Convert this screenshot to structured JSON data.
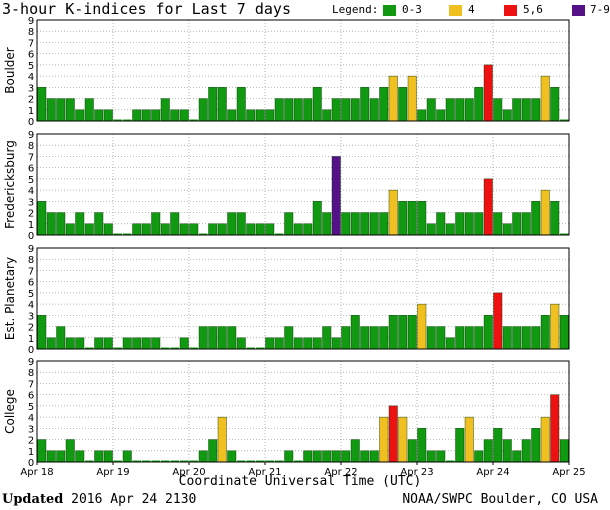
{
  "title": "3-hour K-indices for Last 7 days",
  "legend": {
    "label": "Legend:",
    "items": [
      {
        "label": "0-3",
        "color": "#119911"
      },
      {
        "label": "4",
        "color": "#f0c020"
      },
      {
        "label": "5,6",
        "color": "#ee1111"
      },
      {
        "label": "7-9",
        "color": "#551188"
      }
    ]
  },
  "footer": {
    "updated_label": "Updated",
    "updated_value": "2016 Apr 24 2130",
    "credit": "NOAA/SWPC Boulder, CO USA"
  },
  "chart_data": {
    "type": "bar",
    "title": "3-hour K-indices for Last 7 days",
    "xlabel": "Coordinate Universal Time (UTC)",
    "x_ticks": [
      "Apr 18",
      "Apr 19",
      "Apr 20",
      "Apr 21",
      "Apr 22",
      "Apr 23",
      "Apr 24",
      "Apr 25"
    ],
    "ylim": [
      0,
      9
    ],
    "y_ticks": [
      0,
      1,
      2,
      3,
      4,
      5,
      6,
      7,
      8,
      9
    ],
    "grid": true,
    "bins_per_day": 8,
    "panels": [
      {
        "name": "Boulder",
        "values": [
          3,
          2,
          2,
          2,
          1,
          2,
          1,
          1,
          0,
          0,
          1,
          1,
          1,
          2,
          1,
          1,
          0,
          2,
          3,
          3,
          1,
          3,
          1,
          1,
          1,
          2,
          2,
          2,
          2,
          3,
          1,
          2,
          2,
          2,
          3,
          2,
          3,
          4,
          3,
          4,
          1,
          2,
          1,
          2,
          2,
          2,
          3,
          5,
          2,
          1,
          2,
          2,
          2,
          4,
          3,
          0
        ]
      },
      {
        "name": "Fredericksburg",
        "values": [
          3,
          2,
          2,
          1,
          2,
          1,
          2,
          1,
          0,
          0,
          1,
          1,
          2,
          1,
          2,
          1,
          1,
          0,
          1,
          1,
          2,
          2,
          1,
          1,
          1,
          0,
          2,
          1,
          1,
          3,
          2,
          7,
          2,
          2,
          2,
          2,
          2,
          4,
          3,
          3,
          3,
          1,
          2,
          1,
          2,
          2,
          2,
          5,
          2,
          1,
          2,
          2,
          3,
          4,
          3,
          0
        ]
      },
      {
        "name": "Est. Planetary",
        "values": [
          3,
          1,
          2,
          1,
          1,
          0,
          1,
          1,
          0,
          1,
          1,
          1,
          1,
          0,
          0,
          1,
          0,
          2,
          2,
          2,
          2,
          1,
          0,
          0,
          1,
          1,
          2,
          1,
          1,
          1,
          2,
          1,
          2,
          3,
          2,
          2,
          2,
          3,
          3,
          3,
          4,
          2,
          2,
          1,
          2,
          2,
          2,
          3,
          5,
          2,
          2,
          2,
          2,
          3,
          4,
          3
        ]
      },
      {
        "name": "College",
        "values": [
          2,
          1,
          1,
          2,
          1,
          0,
          1,
          1,
          0,
          1,
          0,
          0,
          0,
          0,
          0,
          0,
          0,
          1,
          2,
          4,
          1,
          0,
          0,
          0,
          0,
          0,
          1,
          0,
          1,
          1,
          1,
          1,
          1,
          2,
          1,
          1,
          4,
          5,
          4,
          2,
          3,
          1,
          1,
          0,
          3,
          4,
          1,
          2,
          3,
          2,
          1,
          2,
          3,
          4,
          6,
          2
        ]
      }
    ]
  }
}
